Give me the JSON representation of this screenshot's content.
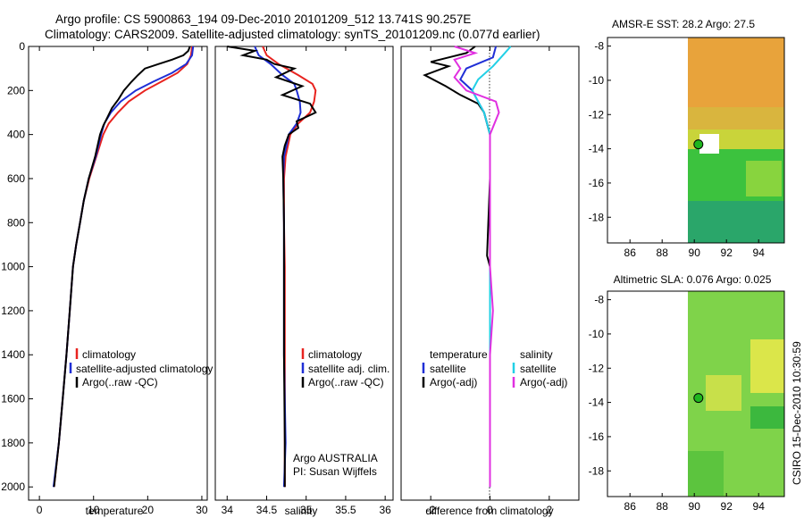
{
  "header": {
    "line1": "Argo profile: CS 5900863_194 09-Dec-2010 20101209_512 13.741S 90.257E",
    "line2": "Climatology: CARS2009. Satellite-adjusted climatology: synTS_20101209.nc (0.077d earlier)"
  },
  "side_text": "CSIRO 15-Dec-2010 10:30:59",
  "colors": {
    "clim": "#e8231f",
    "sat": "#1f2fd6",
    "argo": "#000000",
    "sat_s": "#22d0e6",
    "argo_s": "#e030e0"
  },
  "chart_data": [
    {
      "type": "line",
      "id": "temperature",
      "xlabel": "temperature",
      "ylabel": "",
      "xlim": [
        -2,
        31
      ],
      "ylim": [
        2060,
        0
      ],
      "xticks": [
        0,
        10,
        20,
        30
      ],
      "yticks": [
        0,
        200,
        400,
        600,
        800,
        1000,
        1200,
        1400,
        1600,
        1800,
        2000
      ],
      "legend": {
        "position": "lower-right",
        "entries": [
          "climatology",
          "satellite-adjusted climatology",
          "Argo(..raw -QC)"
        ]
      },
      "series": [
        {
          "name": "climatology",
          "color_key": "clim",
          "points": [
            [
              28.2,
              0
            ],
            [
              28.0,
              40
            ],
            [
              27.3,
              80
            ],
            [
              25.5,
              120
            ],
            [
              22.5,
              160
            ],
            [
              19.5,
              200
            ],
            [
              16.5,
              250
            ],
            [
              14.5,
              300
            ],
            [
              12.8,
              350
            ],
            [
              11.8,
              400
            ],
            [
              10.5,
              500
            ],
            [
              9.2,
              600
            ],
            [
              8.2,
              700
            ],
            [
              7.5,
              800
            ],
            [
              6.8,
              900
            ],
            [
              6.2,
              1000
            ],
            [
              5.6,
              1200
            ],
            [
              5.0,
              1400
            ],
            [
              4.3,
              1600
            ],
            [
              3.6,
              1800
            ],
            [
              2.7,
              2000
            ]
          ]
        },
        {
          "name": "satellite-adjusted climatology",
          "color_key": "sat",
          "points": [
            [
              28.4,
              0
            ],
            [
              28.2,
              40
            ],
            [
              27.1,
              80
            ],
            [
              24.5,
              120
            ],
            [
              21.0,
              160
            ],
            [
              17.8,
              200
            ],
            [
              15.0,
              250
            ],
            [
              13.2,
              300
            ],
            [
              12.0,
              350
            ],
            [
              11.4,
              400
            ],
            [
              10.4,
              500
            ],
            [
              9.1,
              600
            ],
            [
              8.2,
              700
            ],
            [
              7.5,
              800
            ],
            [
              6.8,
              900
            ],
            [
              6.2,
              1000
            ],
            [
              5.6,
              1200
            ],
            [
              5.0,
              1400
            ],
            [
              4.3,
              1600
            ],
            [
              3.6,
              1800
            ],
            [
              2.6,
              2000
            ]
          ]
        },
        {
          "name": "Argo(..raw -QC)",
          "color_key": "argo",
          "points": [
            [
              27.8,
              0
            ],
            [
              27.5,
              20
            ],
            [
              26.6,
              40
            ],
            [
              24.5,
              60
            ],
            [
              22.0,
              80
            ],
            [
              19.5,
              100
            ],
            [
              18.2,
              130
            ],
            [
              17.0,
              160
            ],
            [
              15.6,
              200
            ],
            [
              14.6,
              240
            ],
            [
              13.4,
              280
            ],
            [
              12.6,
              320
            ],
            [
              11.8,
              360
            ],
            [
              11.2,
              400
            ],
            [
              10.3,
              500
            ],
            [
              9.1,
              600
            ],
            [
              8.2,
              700
            ],
            [
              7.5,
              800
            ],
            [
              6.8,
              900
            ],
            [
              6.2,
              1000
            ],
            [
              5.6,
              1200
            ],
            [
              5.0,
              1400
            ],
            [
              4.3,
              1600
            ],
            [
              3.6,
              1800
            ],
            [
              2.7,
              2000
            ]
          ]
        }
      ]
    },
    {
      "type": "line",
      "id": "salinity",
      "xlabel": "salinity",
      "xlim": [
        33.85,
        36.1
      ],
      "ylim": [
        2060,
        0
      ],
      "xticks": [
        34,
        34.5,
        35,
        35.5,
        36
      ],
      "xticklabels": [
        "34",
        "34.5",
        "35",
        "35.5",
        "36"
      ],
      "legend": {
        "position": "lower-right",
        "entries": [
          "climatology",
          "satellite adj. clim.",
          "Argo(..raw -QC)"
        ]
      },
      "annotation": [
        "Argo AUSTRALIA",
        "PI: Susan Wijffels"
      ],
      "series": [
        {
          "name": "climatology",
          "color_key": "clim",
          "points": [
            [
              34.45,
              0
            ],
            [
              34.5,
              40
            ],
            [
              34.65,
              80
            ],
            [
              34.9,
              130
            ],
            [
              35.08,
              170
            ],
            [
              35.12,
              200
            ],
            [
              35.1,
              250
            ],
            [
              35.05,
              300
            ],
            [
              34.9,
              350
            ],
            [
              34.8,
              400
            ],
            [
              34.74,
              500
            ],
            [
              34.72,
              600
            ],
            [
              34.72,
              800
            ],
            [
              34.73,
              1000
            ],
            [
              34.73,
              1400
            ],
            [
              34.73,
              1800
            ],
            [
              34.73,
              2000
            ]
          ]
        },
        {
          "name": "satellite adj. clim.",
          "color_key": "sat",
          "points": [
            [
              34.35,
              0
            ],
            [
              34.4,
              40
            ],
            [
              34.55,
              80
            ],
            [
              34.7,
              130
            ],
            [
              34.85,
              170
            ],
            [
              34.88,
              200
            ],
            [
              34.92,
              250
            ],
            [
              34.93,
              300
            ],
            [
              34.88,
              350
            ],
            [
              34.78,
              400
            ],
            [
              34.72,
              500
            ],
            [
              34.71,
              600
            ],
            [
              34.72,
              800
            ],
            [
              34.72,
              1000
            ],
            [
              34.72,
              1400
            ],
            [
              34.74,
              1800
            ],
            [
              34.72,
              2000
            ]
          ]
        },
        {
          "name": "Argo(..raw -QC)",
          "color_key": "argo",
          "points": [
            [
              34.0,
              0
            ],
            [
              34.35,
              20
            ],
            [
              34.2,
              40
            ],
            [
              34.5,
              60
            ],
            [
              34.6,
              80
            ],
            [
              34.85,
              100
            ],
            [
              34.62,
              140
            ],
            [
              34.95,
              180
            ],
            [
              34.7,
              220
            ],
            [
              35.05,
              260
            ],
            [
              35.12,
              300
            ],
            [
              34.88,
              340
            ],
            [
              34.9,
              370
            ],
            [
              34.78,
              400
            ],
            [
              34.73,
              450
            ],
            [
              34.7,
              500
            ],
            [
              34.71,
              600
            ],
            [
              34.72,
              800
            ],
            [
              34.72,
              1000
            ],
            [
              34.72,
              1400
            ],
            [
              34.73,
              1800
            ],
            [
              34.73,
              2000
            ]
          ]
        }
      ]
    },
    {
      "type": "line",
      "id": "difference",
      "xlabel": "difference from climatology",
      "xlim": [
        -3,
        3
      ],
      "ylim": [
        2060,
        0
      ],
      "xticks": [
        -2,
        0,
        2
      ],
      "xticklabels": [
        "-2",
        "0",
        "2"
      ],
      "legend": {
        "position": "lower-right",
        "groups": [
          {
            "title": "temperature",
            "entries": [
              "satellite",
              "Argo(-adj)"
            ]
          },
          {
            "title": "salinity",
            "entries": [
              "satellite",
              "Argo(-adj)"
            ]
          }
        ]
      },
      "series": [
        {
          "name": "temperature satellite",
          "color_key": "sat",
          "points": [
            [
              0.2,
              0
            ],
            [
              0.1,
              50
            ],
            [
              -0.8,
              100
            ],
            [
              -1.0,
              150
            ],
            [
              -0.6,
              200
            ],
            [
              -0.4,
              250
            ],
            [
              -0.2,
              300
            ],
            [
              0,
              400
            ],
            [
              0,
              600
            ],
            [
              0,
              1000
            ],
            [
              0,
              1400
            ],
            [
              0,
              1800
            ],
            [
              0,
              2000
            ]
          ]
        },
        {
          "name": "temperature Argo(-adj)",
          "color_key": "argo",
          "points": [
            [
              -0.5,
              0
            ],
            [
              -0.8,
              30
            ],
            [
              -2.0,
              70
            ],
            [
              -1.4,
              90
            ],
            [
              -2.2,
              130
            ],
            [
              -1.5,
              180
            ],
            [
              -1.0,
              220
            ],
            [
              -0.4,
              260
            ],
            [
              -0.2,
              300
            ],
            [
              0,
              400
            ],
            [
              0,
              600
            ],
            [
              -0.1,
              950
            ],
            [
              0,
              1000
            ],
            [
              0,
              1400
            ],
            [
              0,
              1800
            ],
            [
              0,
              2000
            ]
          ]
        },
        {
          "name": "salinity satellite",
          "color_key": "sat_s",
          "points": [
            [
              0.7,
              0
            ],
            [
              0.5,
              30
            ],
            [
              0.3,
              60
            ],
            [
              0.1,
              90
            ],
            [
              -0.4,
              150
            ],
            [
              -0.6,
              200
            ],
            [
              -0.4,
              250
            ],
            [
              -0.2,
              300
            ],
            [
              0,
              400
            ],
            [
              0,
              600
            ],
            [
              0,
              1000
            ],
            [
              0,
              1400
            ],
            [
              0,
              1800
            ],
            [
              0,
              2000
            ]
          ]
        },
        {
          "name": "salinity Argo(-adj)",
          "color_key": "argo_s",
          "points": [
            [
              -1.2,
              0
            ],
            [
              -0.5,
              30
            ],
            [
              -1.2,
              60
            ],
            [
              -1.0,
              100
            ],
            [
              -1.2,
              140
            ],
            [
              -0.8,
              200
            ],
            [
              0.2,
              250
            ],
            [
              0.3,
              300
            ],
            [
              0,
              400
            ],
            [
              0,
              600
            ],
            [
              0,
              1000
            ],
            [
              0.1,
              1200
            ],
            [
              0,
              1400
            ],
            [
              0,
              1800
            ],
            [
              0,
              2000
            ]
          ]
        }
      ]
    },
    {
      "type": "heatmap",
      "id": "sst_map",
      "title": "AMSR-E SST: 28.2 Argo: 27.5",
      "xlim": [
        84.6,
        95.6
      ],
      "ylim": [
        -19.5,
        -7.5
      ],
      "xticks": [
        86,
        88,
        90,
        92,
        94
      ],
      "yticks": [
        -8,
        -10,
        -12,
        -14,
        -16,
        -18
      ],
      "data_extent": {
        "lon": [
          90,
          95.6
        ]
      },
      "argo_position": {
        "lon": 90.257,
        "lat": -13.741
      }
    },
    {
      "type": "heatmap",
      "id": "sla_map",
      "title": "Altimetric SLA: 0.076 Argo: 0.025",
      "xlim": [
        84.6,
        95.6
      ],
      "ylim": [
        -19.5,
        -7.5
      ],
      "xticks": [
        86,
        88,
        90,
        92,
        94
      ],
      "yticks": [
        -8,
        -10,
        -12,
        -14,
        -16,
        -18
      ],
      "data_extent": {
        "lon": [
          90,
          95.6
        ]
      },
      "argo_position": {
        "lon": 90.257,
        "lat": -13.741
      }
    }
  ]
}
